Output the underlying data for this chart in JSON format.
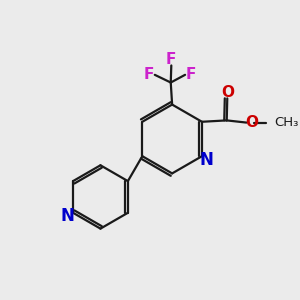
{
  "bg_color": "#ebebeb",
  "bond_color": "#1a1a1a",
  "N_color": "#0000cc",
  "O_color": "#cc0000",
  "F_color": "#cc22cc",
  "line_width": 1.6,
  "font_size": 11,
  "fig_size": [
    3.0,
    3.0
  ],
  "dpi": 100,
  "xlim": [
    0,
    10
  ],
  "ylim": [
    0,
    10
  ]
}
